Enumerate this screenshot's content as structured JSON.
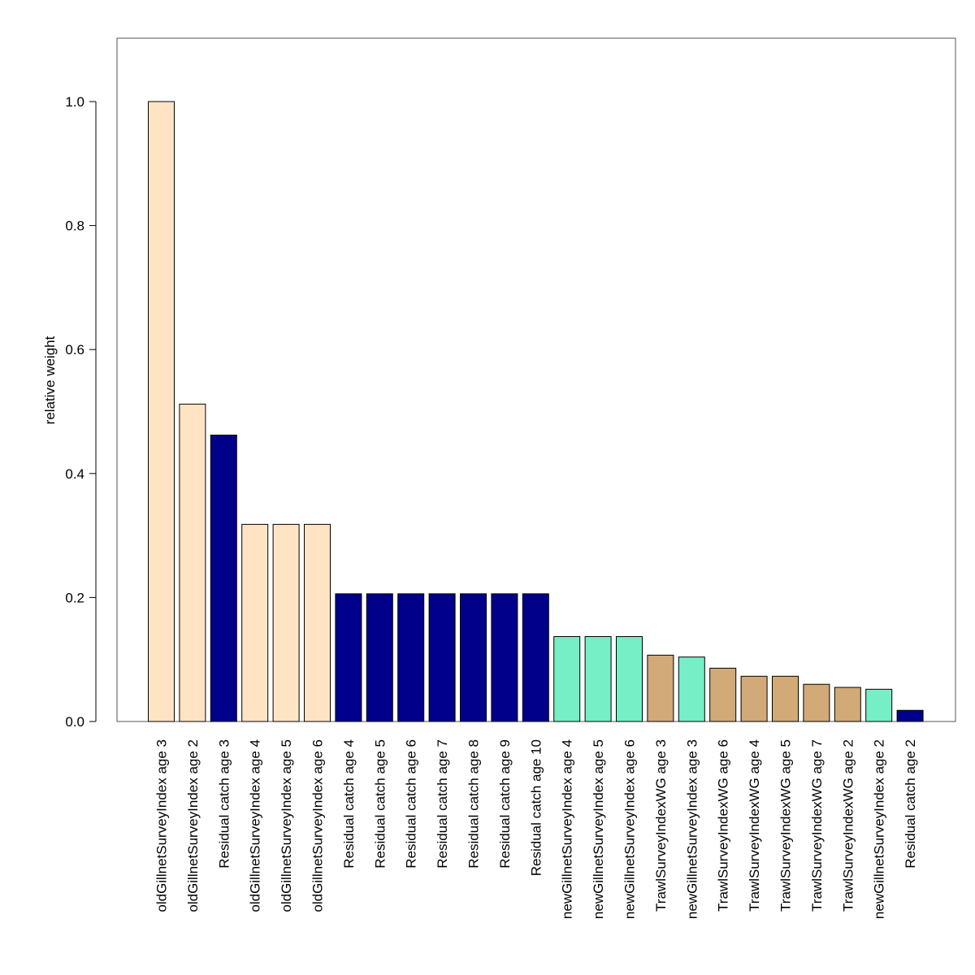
{
  "chart_data": {
    "type": "bar",
    "title": "",
    "xlabel": "",
    "ylabel": "relative weight",
    "ylim": [
      0,
      1.1
    ],
    "yticks": [
      "0.0",
      "0.2",
      "0.4",
      "0.6",
      "0.8",
      "1.0"
    ],
    "ytick_values": [
      0,
      0.2,
      0.4,
      0.6,
      0.8,
      1.0
    ],
    "grid": false,
    "colors": {
      "oldGillnet": "#FFE4C4",
      "residual": "#00008B",
      "newGillnet": "#76EEC6",
      "trawl": "#D2AA78"
    },
    "categories": [
      "oldGillnetSurveyIndex age 3",
      "oldGillnetSurveyIndex age 2",
      "Residual catch age 3",
      "oldGillnetSurveyIndex age 4",
      "oldGillnetSurveyIndex age 5",
      "oldGillnetSurveyIndex age 6",
      "Residual catch age 4",
      "Residual catch age 5",
      "Residual catch age 6",
      "Residual catch age 7",
      "Residual catch age 8",
      "Residual catch age 9",
      "Residual catch age 10",
      "newGillnetSurveyIndex age 4",
      "newGillnetSurveyIndex age 5",
      "newGillnetSurveyIndex age 6",
      "TrawlSurveyIndexWG age 3",
      "newGillnetSurveyIndex age 3",
      "TrawlSurveyIndexWG age 6",
      "TrawlSurveyIndexWG age 4",
      "TrawlSurveyIndexWG age 5",
      "TrawlSurveyIndexWG age 7",
      "TrawlSurveyIndexWG age 2",
      "newGillnetSurveyIndex age 2",
      "Residual catch age 2"
    ],
    "values": [
      1.0,
      0.512,
      0.462,
      0.318,
      0.318,
      0.318,
      0.206,
      0.206,
      0.206,
      0.206,
      0.206,
      0.206,
      0.206,
      0.137,
      0.137,
      0.137,
      0.107,
      0.104,
      0.086,
      0.073,
      0.073,
      0.06,
      0.055,
      0.052,
      0.018
    ],
    "groups": [
      "oldGillnet",
      "oldGillnet",
      "residual",
      "oldGillnet",
      "oldGillnet",
      "oldGillnet",
      "residual",
      "residual",
      "residual",
      "residual",
      "residual",
      "residual",
      "residual",
      "newGillnet",
      "newGillnet",
      "newGillnet",
      "trawl",
      "newGillnet",
      "trawl",
      "trawl",
      "trawl",
      "trawl",
      "trawl",
      "newGillnet",
      "residual"
    ]
  }
}
